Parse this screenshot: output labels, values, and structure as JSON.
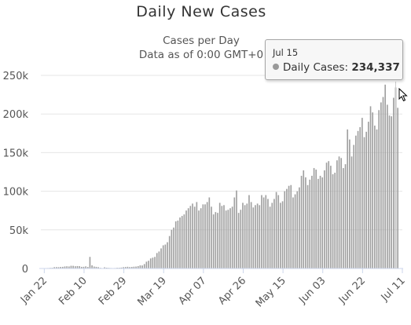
{
  "chart_data": {
    "type": "bar",
    "title": "Daily New Cases",
    "subtitle_lines": [
      "Cases per Day",
      "Data as of 0:00 GMT+0"
    ],
    "xlabel": "",
    "ylabel": "",
    "ylim": [
      0,
      260000
    ],
    "yticks": [
      0,
      50000,
      100000,
      150000,
      200000,
      250000
    ],
    "ytick_labels": [
      "0",
      "50k",
      "100k",
      "150k",
      "200k",
      "250k"
    ],
    "xtick_labels": [
      "Jan 22",
      "Feb 10",
      "Feb 29",
      "Mar 19",
      "Apr 07",
      "Apr 26",
      "May 15",
      "Jun 03",
      "Jun 22",
      "Jul 11"
    ],
    "grid": true,
    "bar_color": "#a0a0a0",
    "highlight_color": "#8a8a8a",
    "series": [
      {
        "name": "Daily Cases",
        "values": [
          500,
          200,
          600,
          800,
          900,
          1700,
          1800,
          1700,
          2000,
          2100,
          2600,
          2800,
          2600,
          3500,
          3400,
          2900,
          3100,
          3000,
          2100,
          2200,
          2700,
          2000,
          15000,
          4000,
          2500,
          2100,
          1700,
          800,
          500,
          1500,
          1000,
          800,
          600,
          400,
          600,
          900,
          900,
          1200,
          1700,
          1900,
          2200,
          1800,
          2000,
          2300,
          2500,
          3000,
          4000,
          3900,
          5700,
          8800,
          10000,
          13000,
          14000,
          15000,
          20000,
          22000,
          26000,
          30000,
          31000,
          34000,
          42000,
          50000,
          53000,
          61000,
          62000,
          66000,
          68000,
          70000,
          75000,
          78000,
          81000,
          84000,
          80000,
          86000,
          75000,
          78000,
          83000,
          83000,
          86000,
          92000,
          80000,
          70000,
          73000,
          72000,
          85000,
          81000,
          82000,
          75000,
          76000,
          78000,
          80000,
          92000,
          101000,
          72000,
          76000,
          85000,
          82000,
          84000,
          95000,
          86000,
          79000,
          82000,
          84000,
          82000,
          95000,
          92000,
          95000,
          90000,
          80000,
          85000,
          90000,
          99000,
          95000,
          85000,
          87000,
          100000,
          103000,
          107000,
          108000,
          92000,
          96000,
          100000,
          105000,
          120000,
          127000,
          118000,
          108000,
          115000,
          120000,
          130000,
          128000,
          116000,
          120000,
          118000,
          127000,
          137000,
          139000,
          133000,
          122000,
          124000,
          140000,
          145000,
          143000,
          130000,
          135000,
          180000,
          167000,
          145000,
          160000,
          172000,
          178000,
          183000,
          195000,
          170000,
          177000,
          190000,
          210000,
          202000,
          185000,
          180000,
          205000,
          215000,
          222000,
          238000,
          212000,
          198000,
          197000,
          221000,
          234337,
          208000
        ]
      }
    ],
    "highlighted": {
      "date": "Jul 15",
      "label": "Daily Cases",
      "value": "234,337"
    }
  }
}
